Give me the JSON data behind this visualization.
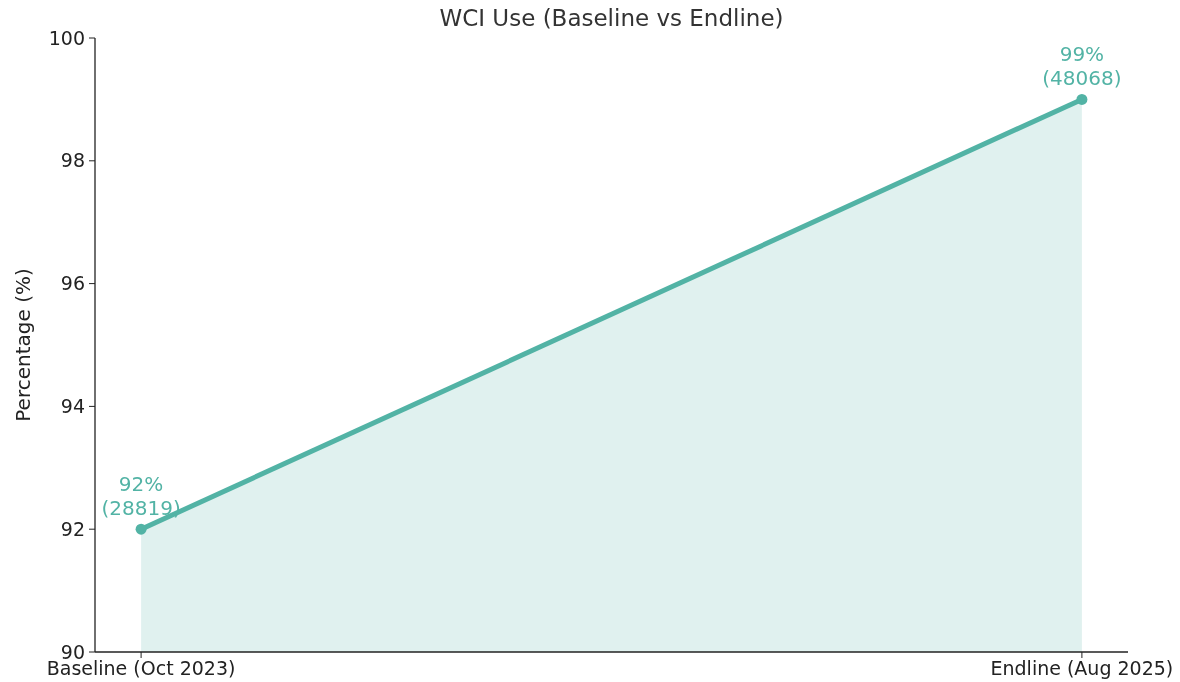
{
  "chart_data": {
    "type": "area",
    "title": "WCI Use (Baseline vs Endline)",
    "ylabel": "Percentage (%)",
    "categories": [
      "Baseline (Oct 2023)",
      "Endline (Aug 2025)"
    ],
    "series": [
      {
        "color": "#52b3a5",
        "values": [
          92,
          99
        ],
        "value_labels": [
          "92%\n(28819)",
          "99%\n(48068)"
        ]
      }
    ],
    "ylim": [
      90,
      100
    ],
    "yticks": [
      90,
      92,
      94,
      96,
      98,
      100
    ],
    "grid": false,
    "marker": "circle",
    "line_style": "solid"
  }
}
